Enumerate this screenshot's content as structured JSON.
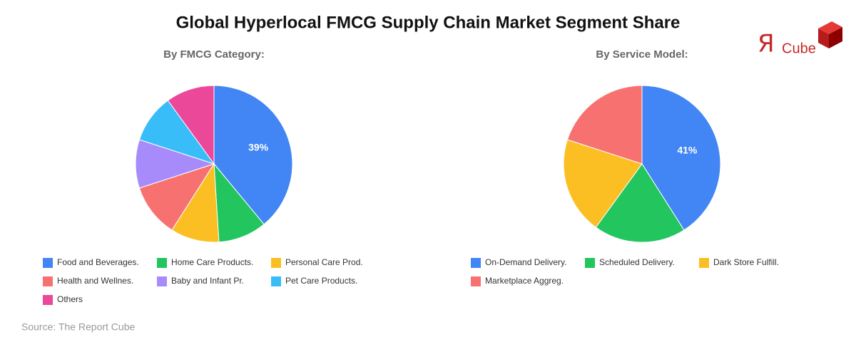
{
  "title": "Global Hyperlocal FMCG Supply Chain Market Segment Share",
  "source": "Source: The Report Cube",
  "logo": {
    "mark": "Я",
    "text": "Cube"
  },
  "chart_data": [
    {
      "type": "pie",
      "title": "By FMCG Category:",
      "categories": [
        "Food and Beverages.",
        "Home Care Products.",
        "Personal Care Prod.",
        "Health and Wellnes.",
        "Baby and Infant Pr.",
        "Pet Care Products.",
        "Others"
      ],
      "values": [
        39,
        10,
        10,
        11,
        10,
        10,
        10
      ],
      "value_labels": [
        "39%",
        null,
        null,
        null,
        null,
        null,
        null
      ],
      "colors": [
        "#4285f4",
        "#22c55e",
        "#fbbf24",
        "#f87171",
        "#a78bfa",
        "#38bdf8",
        "#ec4899"
      ]
    },
    {
      "type": "pie",
      "title": "By Service Model:",
      "categories": [
        "On-Demand Delivery.",
        "Scheduled Delivery.",
        "Dark Store Fulfill.",
        "Marketplace Aggreg."
      ],
      "values": [
        41,
        19,
        20,
        20
      ],
      "value_labels": [
        "41%",
        null,
        null,
        null
      ],
      "colors": [
        "#4285f4",
        "#22c55e",
        "#fbbf24",
        "#f87171"
      ]
    }
  ]
}
